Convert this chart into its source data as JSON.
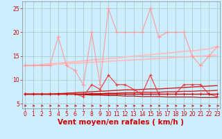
{
  "x": [
    0,
    1,
    2,
    3,
    4,
    5,
    6,
    7,
    8,
    9,
    10,
    11,
    12,
    13,
    14,
    15,
    16,
    17,
    18,
    19,
    20,
    21,
    22,
    23
  ],
  "series": [
    {
      "name": "rafales_top",
      "y": [
        13,
        13,
        13,
        13,
        19,
        13,
        12,
        9,
        20,
        9,
        25,
        20,
        20,
        20,
        20,
        25,
        19,
        20,
        20,
        20,
        15,
        13,
        15,
        17
      ],
      "color": "#ff9999",
      "marker": "+",
      "lw": 0.8,
      "ms": 4,
      "zorder": 3
    },
    {
      "name": "trend_top_upper",
      "y": [
        13.0,
        13.1,
        13.2,
        13.4,
        13.5,
        13.7,
        13.8,
        14.0,
        14.2,
        14.3,
        14.5,
        14.6,
        14.8,
        15.0,
        15.1,
        15.3,
        15.5,
        15.6,
        15.8,
        16.0,
        16.1,
        16.3,
        16.5,
        17.0
      ],
      "color": "#ffbbbb",
      "marker": null,
      "lw": 1.3,
      "ms": 0,
      "zorder": 2
    },
    {
      "name": "trend_top_lower",
      "y": [
        13.0,
        13.0,
        13.1,
        13.2,
        13.3,
        13.4,
        13.5,
        13.6,
        13.7,
        13.8,
        13.9,
        14.0,
        14.1,
        14.2,
        14.3,
        14.4,
        14.5,
        14.6,
        14.7,
        14.8,
        14.9,
        15.0,
        15.1,
        15.2
      ],
      "color": "#ffbbbb",
      "marker": null,
      "lw": 1.3,
      "ms": 0,
      "zorder": 2
    },
    {
      "name": "rafales_mid",
      "y": [
        7,
        7,
        7,
        7,
        7,
        7,
        7,
        6.5,
        9,
        8,
        11,
        9,
        9,
        8,
        7,
        11,
        7,
        7,
        7,
        9,
        9,
        9,
        7,
        6.5
      ],
      "color": "#ee3333",
      "marker": "+",
      "lw": 0.8,
      "ms": 3.5,
      "zorder": 3
    },
    {
      "name": "trend_mid_upper",
      "y": [
        7.0,
        7.0,
        7.0,
        7.0,
        7.1,
        7.2,
        7.3,
        7.4,
        7.5,
        7.6,
        7.7,
        7.8,
        7.9,
        7.9,
        8.0,
        8.1,
        8.1,
        8.2,
        8.3,
        8.4,
        8.5,
        8.6,
        8.7,
        8.8
      ],
      "color": "#cc2222",
      "marker": null,
      "lw": 1.0,
      "ms": 0,
      "zorder": 2
    },
    {
      "name": "trend_mid_lower",
      "y": [
        7.0,
        7.0,
        7.0,
        7.0,
        7.0,
        7.0,
        7.0,
        7.0,
        7.1,
        7.1,
        7.2,
        7.2,
        7.3,
        7.3,
        7.4,
        7.4,
        7.4,
        7.5,
        7.5,
        7.6,
        7.6,
        7.7,
        7.7,
        7.8
      ],
      "color": "#cc2222",
      "marker": null,
      "lw": 1.0,
      "ms": 0,
      "zorder": 2
    },
    {
      "name": "flat_mean",
      "y": [
        7,
        7,
        7,
        7,
        7,
        7,
        7,
        7,
        7,
        7,
        7,
        7,
        7,
        7,
        7,
        7,
        7,
        7,
        7,
        7,
        7,
        7,
        7,
        7
      ],
      "color": "#bb0000",
      "marker": null,
      "lw": 1.0,
      "ms": 0,
      "zorder": 2
    },
    {
      "name": "mean_dots",
      "y": [
        7,
        7,
        7,
        7,
        7,
        7,
        7,
        7,
        7,
        7,
        7,
        7,
        7,
        7,
        7,
        7,
        7,
        7,
        7,
        7,
        7,
        7,
        7,
        7
      ],
      "color": "#cc0000",
      "marker": "+",
      "lw": 0.5,
      "ms": 2.5,
      "zorder": 3
    },
    {
      "name": "declining_line",
      "y": [
        7.0,
        7.0,
        7.0,
        7.0,
        7.0,
        7.0,
        7.0,
        6.9,
        6.8,
        6.8,
        6.7,
        6.7,
        6.6,
        6.6,
        6.5,
        6.5,
        6.5,
        6.4,
        6.4,
        6.4,
        6.4,
        6.3,
        6.3,
        6.3
      ],
      "color": "#aa0000",
      "marker": null,
      "lw": 0.8,
      "ms": 0,
      "zorder": 2
    }
  ],
  "xlabel": "Vent moyen/en rafales ( km/h )",
  "yticks": [
    5,
    10,
    15,
    20,
    25
  ],
  "xticks": [
    0,
    1,
    2,
    3,
    4,
    5,
    6,
    7,
    8,
    9,
    10,
    11,
    12,
    13,
    14,
    15,
    16,
    17,
    18,
    19,
    20,
    21,
    22,
    23
  ],
  "xlim": [
    -0.3,
    23.3
  ],
  "ylim": [
    4.0,
    26.5
  ],
  "bg_color": "#cceeff",
  "grid_color": "#aacccc",
  "tick_color": "#cc0000",
  "label_color": "#cc0000",
  "tick_fontsize": 5.5,
  "xlabel_fontsize": 7.5,
  "xlabel_fontweight": "bold"
}
